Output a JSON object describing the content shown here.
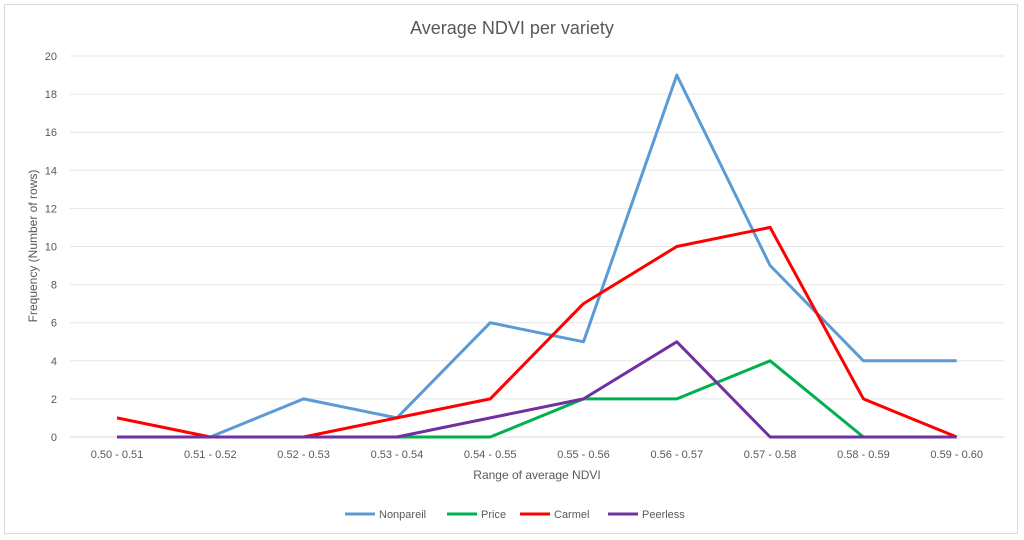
{
  "chart_data": {
    "type": "line",
    "title": "Average NDVI per variety",
    "xlabel": "Range of average NDVI",
    "ylabel": "Frequency (Number of rows)",
    "ylim": [
      0,
      20
    ],
    "yticks": [
      0,
      2,
      4,
      6,
      8,
      10,
      12,
      14,
      16,
      18,
      20
    ],
    "grid": true,
    "legend_position": "bottom",
    "categories": [
      "0.50 - 0.51",
      "0.51 - 0.52",
      "0.52 - 0.53",
      "0.53 - 0.54",
      "0.54 - 0.55",
      "0.55 - 0.56",
      "0.56 - 0.57",
      "0.57 - 0.58",
      "0.58 - 0.59",
      "0.59 - 0.60"
    ],
    "series": [
      {
        "name": "Nonpareil",
        "color": "#5b9bd5",
        "values": [
          null,
          0,
          2,
          1,
          6,
          5,
          19,
          9,
          4,
          4
        ]
      },
      {
        "name": "Price",
        "color": "#00b050",
        "values": [
          null,
          null,
          null,
          0,
          0,
          2,
          2,
          4,
          0,
          null
        ]
      },
      {
        "name": "Carmel",
        "color": "#ff0000",
        "values": [
          1,
          0,
          0,
          1,
          2,
          7,
          10,
          11,
          2,
          0
        ]
      },
      {
        "name": "Peerless",
        "color": "#7030a0",
        "values": [
          0,
          0,
          0,
          0,
          1,
          2,
          5,
          0,
          0,
          0
        ]
      }
    ]
  }
}
